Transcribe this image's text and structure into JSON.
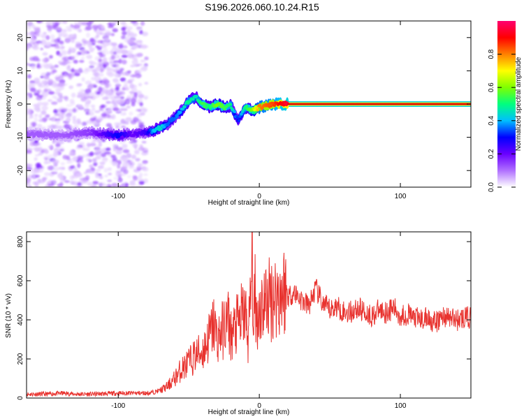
{
  "figure": {
    "title": "S196.2026.060.10.24.R15"
  },
  "chart_data": [
    {
      "type": "heatmap",
      "xlabel": "Height of straight line (km)",
      "ylabel": "Frequency (Hz)",
      "xlim": [
        -165,
        150
      ],
      "ylim": [
        -25,
        25
      ],
      "xticks": [
        -100,
        0,
        100
      ],
      "yticks": [
        -20,
        -10,
        0,
        10,
        20
      ],
      "colorbar": {
        "label": "Normalized spectral amplitude",
        "range": [
          0,
          1
        ],
        "ticks": [
          0.0,
          0.2,
          0.4,
          0.6,
          0.8
        ],
        "colormap": [
          "#ffffff",
          "#b070ff",
          "#6a00ff",
          "#0000ff",
          "#00bfff",
          "#00ff7f",
          "#7fff00",
          "#ffff00",
          "#ff8000",
          "#ff0000",
          "#ff0070"
        ]
      },
      "ridge": {
        "x": [
          -165,
          -140,
          -120,
          -100,
          -90,
          -80,
          -75,
          -70,
          -65,
          -60,
          -55,
          -50,
          -45,
          -40,
          -35,
          -30,
          -25,
          -20,
          -15,
          -10,
          -5,
          0,
          10,
          20,
          50,
          100,
          150
        ],
        "frequency_hz": [
          -9,
          -9.5,
          -8.5,
          -9.5,
          -9,
          -8.5,
          -8,
          -7,
          -6,
          -4,
          -2,
          1,
          2,
          0,
          -1,
          0,
          -1,
          -0.5,
          -5,
          -1,
          -2,
          -1,
          0,
          0,
          0,
          0,
          0
        ],
        "amplitude": [
          0.12,
          0.12,
          0.15,
          0.3,
          0.2,
          0.25,
          0.4,
          0.45,
          0.35,
          0.35,
          0.4,
          0.5,
          0.45,
          0.55,
          0.5,
          0.6,
          0.55,
          0.5,
          0.3,
          0.5,
          0.6,
          0.8,
          0.85,
          0.95,
          0.95,
          0.95,
          0.95
        ]
      }
    },
    {
      "type": "line",
      "xlabel": "Height of straight line (km)",
      "ylabel": "SNR (10 * v/v)",
      "xlim": [
        -165,
        150
      ],
      "ylim": [
        0,
        850
      ],
      "xticks": [
        -100,
        0,
        100
      ],
      "yticks": [
        0,
        200,
        400,
        600,
        800
      ],
      "color": "#e8322e",
      "series": [
        {
          "x": [
            -165,
            -150,
            -140,
            -130,
            -120,
            -110,
            -100,
            -90,
            -80,
            -75,
            -70,
            -65,
            -60,
            -55,
            -50,
            -45,
            -40,
            -35,
            -32,
            -30,
            -25,
            -22,
            -20,
            -15,
            -12,
            -10,
            -8,
            -6,
            -5,
            -4,
            -3,
            -2,
            0,
            5,
            10,
            15,
            18,
            20,
            25,
            30,
            35,
            40,
            45,
            50,
            55,
            60,
            65,
            70,
            75,
            80,
            85,
            90,
            95,
            100,
            105,
            110,
            115,
            120,
            125,
            130,
            135,
            140,
            145,
            150
          ],
          "values": [
            20,
            20,
            25,
            20,
            20,
            22,
            25,
            25,
            25,
            30,
            40,
            60,
            100,
            150,
            180,
            220,
            240,
            320,
            380,
            300,
            360,
            400,
            320,
            380,
            420,
            440,
            300,
            520,
            750,
            300,
            600,
            380,
            460,
            500,
            520,
            530,
            560,
            520,
            540,
            500,
            470,
            560,
            480,
            450,
            470,
            440,
            440,
            460,
            440,
            420,
            450,
            440,
            460,
            420,
            430,
            410,
            400,
            410,
            380,
            420,
            410,
            400,
            410,
            410
          ]
        }
      ]
    }
  ]
}
